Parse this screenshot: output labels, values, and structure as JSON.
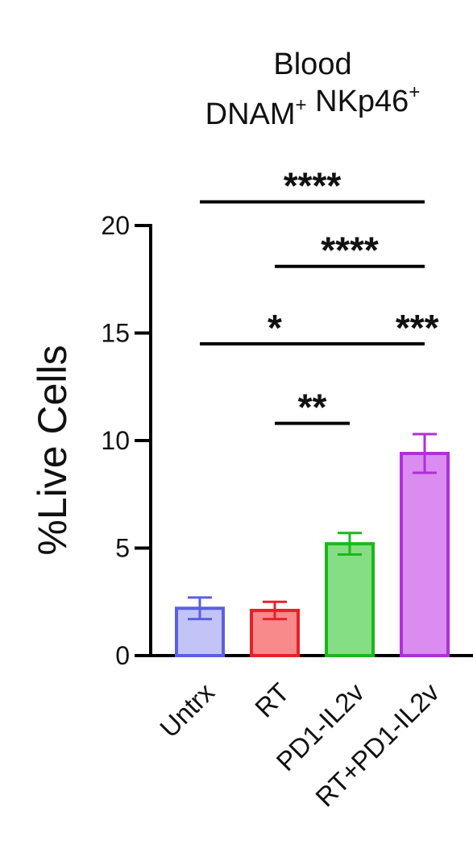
{
  "chart_data": {
    "type": "bar",
    "title_lines": [
      {
        "text": "Blood",
        "sup": ""
      },
      {
        "parts": [
          {
            "text": "DNAM",
            "sup": "+"
          },
          {
            "text": " NKp46",
            "sup": "+"
          }
        ]
      }
    ],
    "ylabel": "%Live Cells",
    "xlabel": "",
    "ylim": [
      0,
      20
    ],
    "yticks": [
      0,
      5,
      10,
      15,
      20
    ],
    "categories": [
      "Untrx",
      "RT",
      "PD1-IL2v",
      "RT+PD1-IL2v"
    ],
    "values": [
      2.2,
      2.1,
      5.2,
      9.4
    ],
    "errors": [
      0.5,
      0.4,
      0.5,
      0.9
    ],
    "colors": {
      "stroke": [
        "#5b5fe0",
        "#e8202a",
        "#1ab81a",
        "#b02fd8"
      ],
      "fill": [
        "#c2c4f8",
        "#f98a8c",
        "#86de84",
        "#da8cf1"
      ]
    },
    "significance": [
      {
        "from": 0,
        "to": 3,
        "y": 21.1,
        "label": "****"
      },
      {
        "from": 1,
        "to": 3,
        "y": 18.1,
        "label": "****"
      },
      {
        "from": 0,
        "to": 3,
        "y": 14.5,
        "label": "*",
        "label_at": 1.0
      },
      {
        "from": 0,
        "to": 3,
        "y": 14.5,
        "label": "***",
        "label_at": 2.9
      },
      {
        "from": 1,
        "to": 2,
        "y": 10.8,
        "label": "**"
      }
    ],
    "grid": false,
    "legend": "none"
  }
}
